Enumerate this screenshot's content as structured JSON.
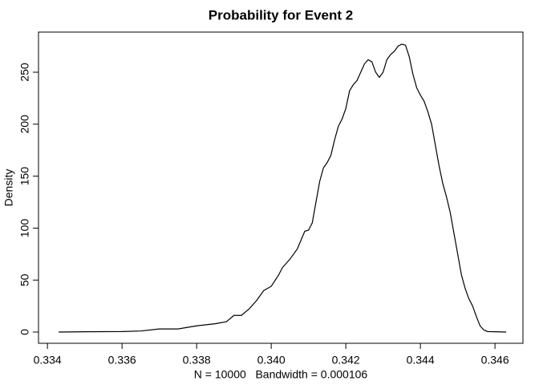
{
  "chart_data": {
    "type": "line",
    "title": "Probability for Event 2",
    "x_label": "N = 10000   Bandwidth = 0.000106",
    "y_label": "Density",
    "series": [
      {
        "color": "#000000",
        "x": [
          0.3343,
          0.335,
          0.336,
          0.3365,
          0.337,
          0.3375,
          0.338,
          0.3385,
          0.3388,
          0.339,
          0.3392,
          0.3394,
          0.3396,
          0.3398,
          0.34,
          0.3402,
          0.3403,
          0.3405,
          0.3407,
          0.3409,
          0.341,
          0.3411,
          0.3412,
          0.3413,
          0.3414,
          0.3415,
          0.3416,
          0.3417,
          0.3418,
          0.3419,
          0.342,
          0.3421,
          0.3422,
          0.3423,
          0.3425,
          0.3426,
          0.3427,
          0.3428,
          0.3429,
          0.343,
          0.3431,
          0.3432,
          0.3433,
          0.3434,
          0.3435,
          0.3436,
          0.3437,
          0.3438,
          0.3439,
          0.344,
          0.3441,
          0.3442,
          0.3443,
          0.3444,
          0.3445,
          0.3446,
          0.3447,
          0.3448,
          0.3449,
          0.345,
          0.3451,
          0.3452,
          0.3453,
          0.3454,
          0.3455,
          0.3456,
          0.3457,
          0.3458,
          0.3463
        ],
        "values": [
          0,
          0.3,
          0.5,
          1,
          3,
          3,
          6,
          8,
          10,
          16,
          16,
          22,
          30,
          40,
          44,
          55,
          62,
          70,
          80,
          97,
          98,
          105,
          125,
          145,
          158,
          163,
          170,
          185,
          198,
          205,
          215,
          232,
          238,
          242,
          258,
          262,
          260,
          250,
          245,
          250,
          262,
          267,
          270,
          275,
          277,
          276,
          265,
          248,
          235,
          228,
          222,
          212,
          200,
          180,
          160,
          143,
          130,
          115,
          95,
          75,
          55,
          42,
          32,
          25,
          15,
          6,
          2,
          0.5,
          0
        ]
      }
    ],
    "xlim": [
      0.33376,
      0.34675
    ],
    "xticks": [
      0.334,
      0.336,
      0.338,
      0.34,
      0.342,
      0.344,
      0.346
    ],
    "ylim": [
      -10.8,
      288.6
    ],
    "yticks": [
      0,
      50,
      100,
      150,
      200,
      250
    ],
    "grid": false
  }
}
